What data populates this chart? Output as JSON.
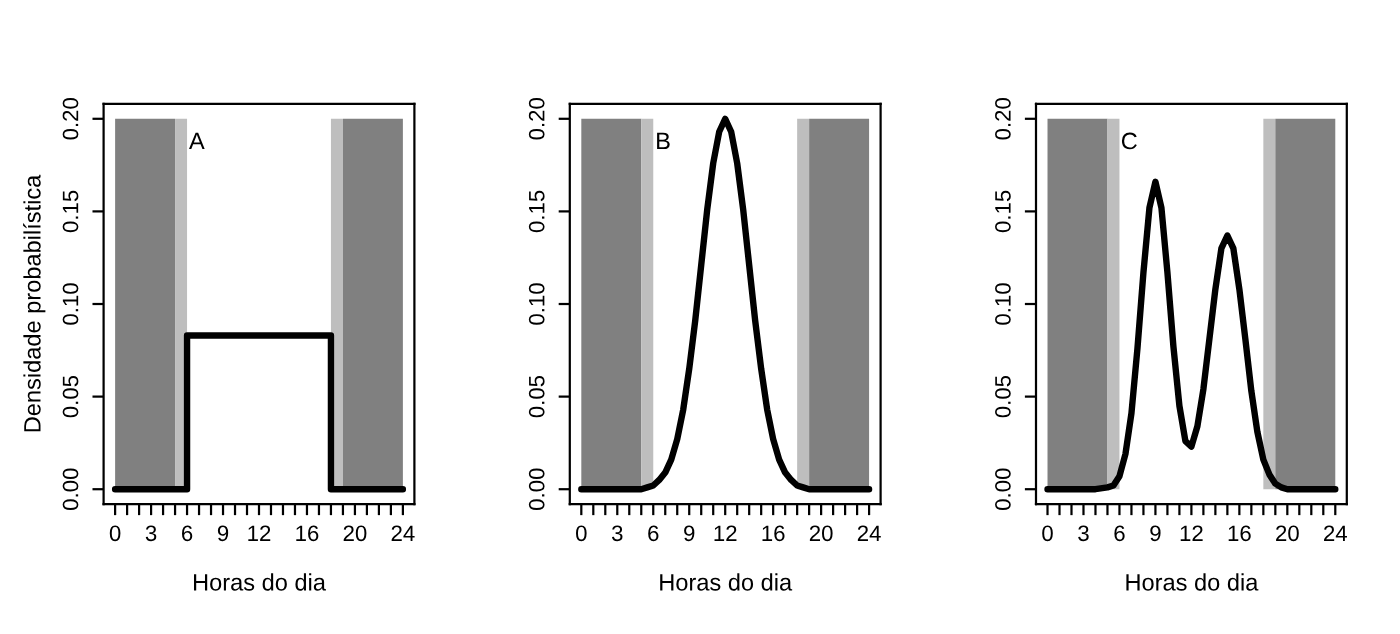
{
  "chart_data": [
    {
      "type": "line",
      "ylabel": "Densidade probabilística",
      "xlabel": "Horas do dia",
      "annotations": [
        "A"
      ],
      "series": [
        {
          "color": "#000000",
          "x": [
            0,
            6,
            6,
            18,
            18,
            24
          ],
          "values": [
            0,
            0,
            0.083,
            0.083,
            0,
            0
          ]
        }
      ],
      "xlim": [
        -0.96,
        24.96
      ],
      "ylim": [
        -0.008,
        0.208
      ],
      "xticks": [
        0,
        {
          "value": 1,
          "label": null
        },
        {
          "value": 2,
          "label": null
        },
        3,
        {
          "value": 4,
          "label": null
        },
        {
          "value": 5,
          "label": null
        },
        6,
        {
          "value": 7,
          "label": null
        },
        {
          "value": 8,
          "label": null
        },
        9,
        {
          "value": 10,
          "label": null
        },
        {
          "value": 11,
          "label": null
        },
        12,
        {
          "value": 13,
          "label": null
        },
        {
          "value": 14,
          "label": null
        },
        {
          "value": 15,
          "label": null
        },
        16,
        {
          "value": 17,
          "label": null
        },
        {
          "value": 18,
          "label": null
        },
        {
          "value": 19,
          "label": null
        },
        20,
        {
          "value": 21,
          "label": null
        },
        {
          "value": 22,
          "label": null
        },
        {
          "value": 23,
          "label": null
        },
        24
      ],
      "yticks": [
        {
          "value": 0,
          "label": "0.00"
        },
        {
          "value": 0.05,
          "label": "0.05"
        },
        {
          "value": 0.1,
          "label": "0.10"
        },
        {
          "value": 0.15,
          "label": "0.15"
        },
        {
          "value": 0.2,
          "label": "0.20"
        }
      ],
      "bands": [
        {
          "axis": "x",
          "from": 0,
          "to": 5,
          "color": "#808080"
        },
        {
          "axis": "x",
          "from": 5,
          "to": 6,
          "color": "#bebebe"
        },
        {
          "axis": "x",
          "from": 18,
          "to": 19,
          "color": "#bebebe"
        },
        {
          "axis": "x",
          "from": 19,
          "to": 24,
          "color": "#808080"
        }
      ],
      "grid": false,
      "legend": false
    },
    {
      "type": "line",
      "xlabel": "Horas do dia",
      "annotations": [
        "B"
      ],
      "series": [
        {
          "color": "#000000",
          "x": [
            0,
            4,
            5,
            5.5,
            6,
            6.5,
            7,
            7.5,
            8,
            8.5,
            9,
            9.5,
            10,
            10.5,
            11,
            11.5,
            12,
            12.5,
            13,
            13.5,
            14,
            14.5,
            15,
            15.5,
            16,
            16.5,
            17,
            17.5,
            18,
            18.5,
            19,
            20,
            24
          ],
          "values": [
            0,
            0,
            0,
            0.001,
            0.002,
            0.005,
            0.009,
            0.016,
            0.027,
            0.043,
            0.065,
            0.091,
            0.121,
            0.151,
            0.176,
            0.193,
            0.2,
            0.193,
            0.176,
            0.151,
            0.121,
            0.091,
            0.065,
            0.043,
            0.027,
            0.016,
            0.009,
            0.005,
            0.002,
            0.001,
            0,
            0,
            0
          ]
        }
      ],
      "xlim": [
        -0.96,
        24.96
      ],
      "ylim": [
        -0.008,
        0.208
      ],
      "xticks": [
        0,
        {
          "value": 1,
          "label": null
        },
        {
          "value": 2,
          "label": null
        },
        3,
        {
          "value": 4,
          "label": null
        },
        {
          "value": 5,
          "label": null
        },
        6,
        {
          "value": 7,
          "label": null
        },
        {
          "value": 8,
          "label": null
        },
        9,
        {
          "value": 10,
          "label": null
        },
        {
          "value": 11,
          "label": null
        },
        12,
        {
          "value": 13,
          "label": null
        },
        {
          "value": 14,
          "label": null
        },
        {
          "value": 15,
          "label": null
        },
        16,
        {
          "value": 17,
          "label": null
        },
        {
          "value": 18,
          "label": null
        },
        {
          "value": 19,
          "label": null
        },
        20,
        {
          "value": 21,
          "label": null
        },
        {
          "value": 22,
          "label": null
        },
        {
          "value": 23,
          "label": null
        },
        24
      ],
      "yticks": [
        {
          "value": 0,
          "label": "0.00"
        },
        {
          "value": 0.05,
          "label": "0.05"
        },
        {
          "value": 0.1,
          "label": "0.10"
        },
        {
          "value": 0.15,
          "label": "0.15"
        },
        {
          "value": 0.2,
          "label": "0.20"
        }
      ],
      "bands": [
        {
          "axis": "x",
          "from": 0,
          "to": 5,
          "color": "#808080"
        },
        {
          "axis": "x",
          "from": 5,
          "to": 6,
          "color": "#bebebe"
        },
        {
          "axis": "x",
          "from": 18,
          "to": 19,
          "color": "#bebebe"
        },
        {
          "axis": "x",
          "from": 19,
          "to": 24,
          "color": "#808080"
        }
      ],
      "grid": false,
      "legend": false
    },
    {
      "type": "line",
      "xlabel": "Horas do dia",
      "annotations": [
        "C"
      ],
      "series": [
        {
          "color": "#000000",
          "x": [
            0,
            4,
            5,
            5.5,
            6,
            6.5,
            7,
            7.5,
            8,
            8.5,
            9,
            9.5,
            10,
            10.5,
            11,
            11.5,
            12,
            12.5,
            13,
            13.5,
            14,
            14.5,
            15,
            15.5,
            16,
            16.5,
            17,
            17.5,
            18,
            18.5,
            19,
            19.5,
            20,
            21,
            24
          ],
          "values": [
            0,
            0,
            0.001,
            0.002,
            0.007,
            0.019,
            0.041,
            0.076,
            0.117,
            0.152,
            0.166,
            0.152,
            0.117,
            0.077,
            0.045,
            0.026,
            0.023,
            0.034,
            0.054,
            0.081,
            0.108,
            0.13,
            0.137,
            0.13,
            0.108,
            0.081,
            0.053,
            0.031,
            0.016,
            0.008,
            0.003,
            0.001,
            0,
            0,
            0
          ]
        }
      ],
      "xlim": [
        -0.96,
        24.96
      ],
      "ylim": [
        -0.008,
        0.208
      ],
      "xticks": [
        0,
        {
          "value": 1,
          "label": null
        },
        {
          "value": 2,
          "label": null
        },
        3,
        {
          "value": 4,
          "label": null
        },
        {
          "value": 5,
          "label": null
        },
        6,
        {
          "value": 7,
          "label": null
        },
        {
          "value": 8,
          "label": null
        },
        9,
        {
          "value": 10,
          "label": null
        },
        {
          "value": 11,
          "label": null
        },
        12,
        {
          "value": 13,
          "label": null
        },
        {
          "value": 14,
          "label": null
        },
        {
          "value": 15,
          "label": null
        },
        16,
        {
          "value": 17,
          "label": null
        },
        {
          "value": 18,
          "label": null
        },
        {
          "value": 19,
          "label": null
        },
        20,
        {
          "value": 21,
          "label": null
        },
        {
          "value": 22,
          "label": null
        },
        {
          "value": 23,
          "label": null
        },
        24
      ],
      "yticks": [
        {
          "value": 0,
          "label": "0.00"
        },
        {
          "value": 0.05,
          "label": "0.05"
        },
        {
          "value": 0.1,
          "label": "0.10"
        },
        {
          "value": 0.15,
          "label": "0.15"
        },
        {
          "value": 0.2,
          "label": "0.20"
        }
      ],
      "bands": [
        {
          "axis": "x",
          "from": 0,
          "to": 5,
          "color": "#808080"
        },
        {
          "axis": "x",
          "from": 5,
          "to": 6,
          "color": "#bebebe"
        },
        {
          "axis": "x",
          "from": 18,
          "to": 19,
          "color": "#bebebe"
        },
        {
          "axis": "x",
          "from": 19,
          "to": 24,
          "color": "#808080"
        }
      ],
      "grid": false,
      "legend": false
    }
  ]
}
